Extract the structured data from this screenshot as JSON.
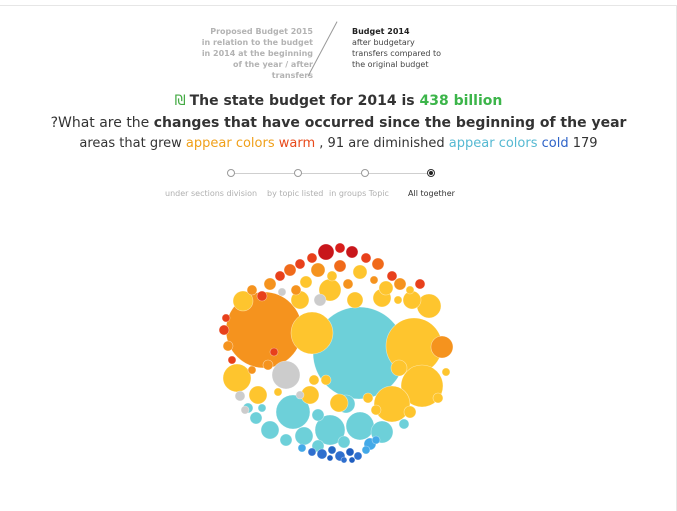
{
  "tabs": {
    "left_lines": [
      "Proposed Budget 2015",
      "in relation to the budget",
      "in 2014 at the beginning",
      "of the year / after",
      "transfers"
    ],
    "right_lines": [
      "Budget 2014",
      "after budgetary",
      "transfers compared to",
      "the original budget"
    ]
  },
  "headline": {
    "shekel": "₪",
    "text": "The state budget for 2014 is",
    "amount": "438 billion"
  },
  "question": {
    "prefix": "?What are the",
    "bold": "changes that have occurred since the beginning of the year"
  },
  "areas_line": {
    "part1": "areas that grew",
    "appear": "appear colors",
    "warm": "warm",
    "part2": ", 91 are diminished",
    "appear2": "appear colors",
    "cold": "cold",
    "count": "179"
  },
  "view_options": {
    "labels": [
      "under sections division",
      "by topic listed",
      "in groups Topic",
      "All together"
    ],
    "selected": 3
  },
  "colors": {
    "green": "#3cb54a",
    "orange": "#f5931e",
    "yellow": "#fec52e",
    "red": "#e8401b",
    "teal": "#6dd0d9",
    "blue": "#2f6fce",
    "gray": "#cccccc"
  }
}
